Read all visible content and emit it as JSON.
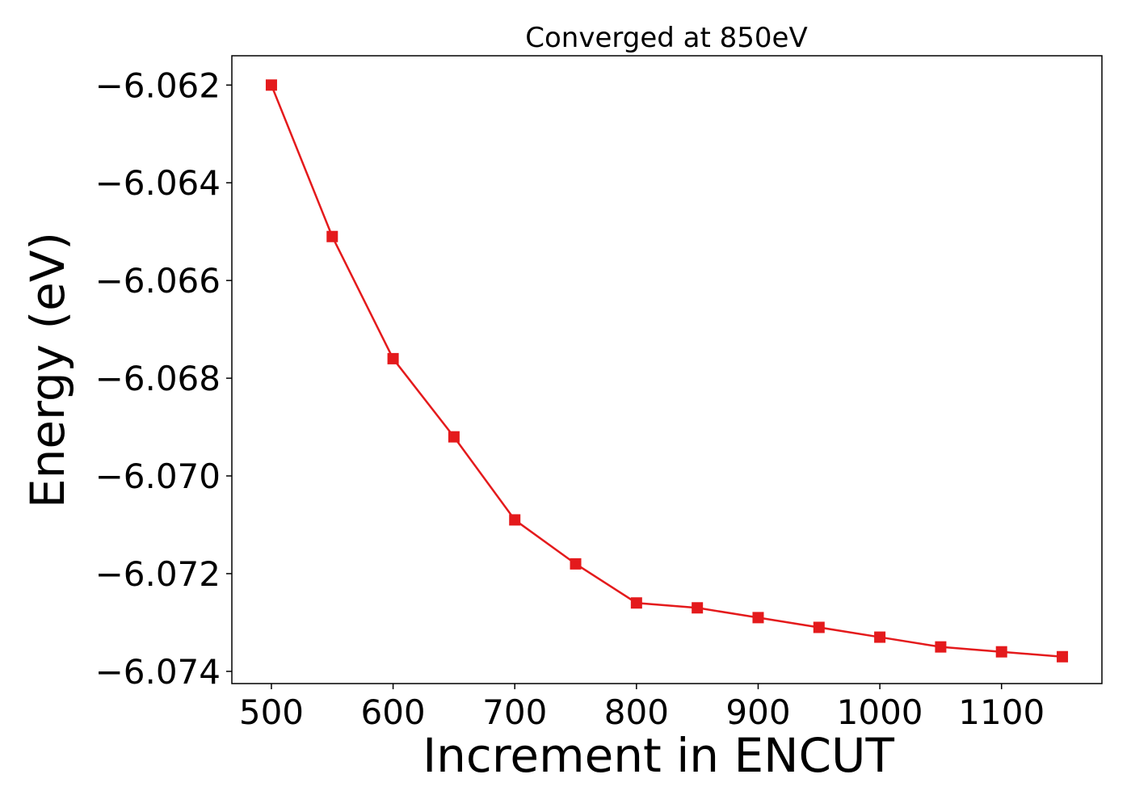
{
  "chart_data": {
    "type": "line",
    "title": "Converged at 850eV",
    "xlabel": "Increment in ENCUT",
    "ylabel": "Energy (eV)",
    "x": [
      500,
      550,
      600,
      650,
      700,
      750,
      800,
      850,
      900,
      950,
      1000,
      1050,
      1100,
      1150
    ],
    "series": [
      {
        "values": [
          -6.062,
          -6.0651,
          -6.0676,
          -6.0692,
          -6.0709,
          -6.0718,
          -6.0726,
          -6.0727,
          -6.0729,
          -6.0731,
          -6.0733,
          -6.0735,
          -6.0736,
          -6.0737
        ],
        "color": "#e41a1c",
        "marker": "square"
      }
    ],
    "xlim": [
      467.5,
      1182.5
    ],
    "ylim": [
      -6.07425,
      -6.0614
    ],
    "xticks": [
      500,
      600,
      700,
      800,
      900,
      1000,
      1100
    ],
    "xtick_labels": [
      "500",
      "600",
      "700",
      "800",
      "900",
      "1000",
      "1100"
    ],
    "yticks": [
      -6.062,
      -6.064,
      -6.066,
      -6.068,
      -6.07,
      -6.072,
      -6.074
    ],
    "ytick_labels": [
      "−6.062",
      "−6.064",
      "−6.066",
      "−6.068",
      "−6.070",
      "−6.072",
      "−6.074"
    ],
    "grid": false,
    "legend": false
  }
}
